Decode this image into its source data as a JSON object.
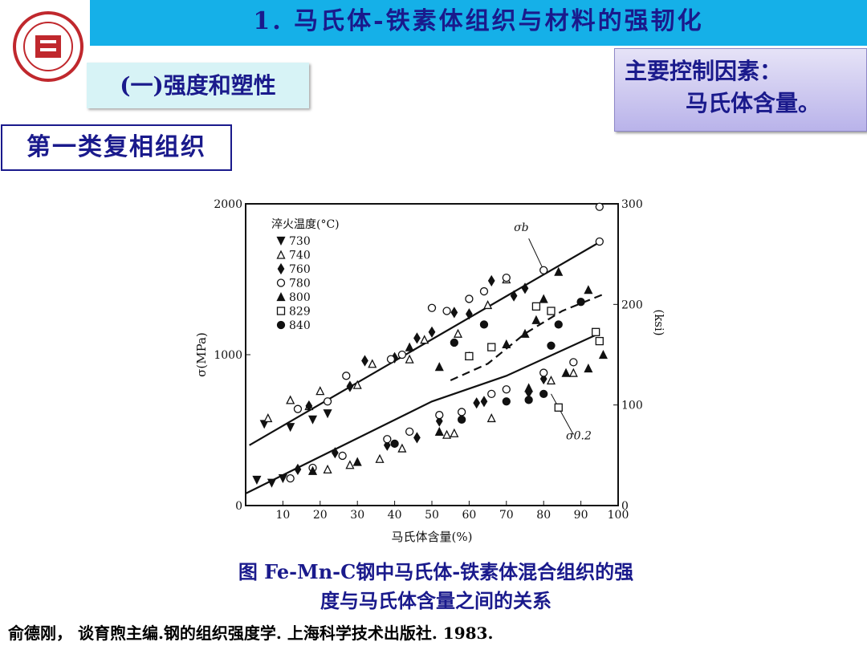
{
  "header": {
    "title": "1. 马氏体-铁素体组织与材料的强韧化"
  },
  "section": "(一)强度和塑性",
  "callout": {
    "line1": "主要控制因素：",
    "line2": "马氏体含量。"
  },
  "subsection": "第一类复相组织",
  "chart_data": {
    "type": "scatter",
    "xlabel": "马氏体含量(%)",
    "ylabel": "σ(MPa)",
    "y2label": "(ksi)",
    "legend_title": "淬火温度(°C)",
    "xlim": [
      0,
      100
    ],
    "xticks": [
      10,
      20,
      30,
      40,
      50,
      60,
      70,
      80,
      90,
      100
    ],
    "ylim": [
      0,
      2000
    ],
    "yticks": [
      0,
      1000,
      2000
    ],
    "y2lim": [
      0,
      300
    ],
    "y2ticks": [
      0,
      100,
      200,
      300
    ],
    "series": [
      {
        "name": "730",
        "marker": "triangle-down",
        "color": "#111111",
        "x": [
          5,
          12,
          18,
          22,
          3,
          7,
          10
        ],
        "values": [
          540,
          520,
          570,
          610,
          170,
          150,
          180
        ]
      },
      {
        "name": "740",
        "marker": "triangle-up-open",
        "color": "#111111",
        "x": [
          6,
          12,
          17,
          20,
          30,
          34,
          44,
          48,
          57,
          65,
          70,
          22,
          28,
          36,
          42,
          54,
          56,
          66,
          82,
          88
        ],
        "values": [
          580,
          700,
          660,
          760,
          800,
          940,
          970,
          1100,
          1140,
          1330,
          1500,
          240,
          270,
          310,
          380,
          470,
          480,
          580,
          830,
          880
        ]
      },
      {
        "name": "760",
        "marker": "diamond",
        "color": "#111111",
        "x": [
          17,
          28,
          32,
          40,
          46,
          50,
          56,
          60,
          66,
          72,
          75,
          14,
          24,
          38,
          46,
          52,
          62,
          64,
          76,
          80
        ],
        "values": [
          660,
          790,
          960,
          980,
          1110,
          1150,
          1280,
          1270,
          1490,
          1390,
          1440,
          240,
          350,
          400,
          450,
          560,
          680,
          690,
          750,
          840
        ]
      },
      {
        "name": "780",
        "marker": "circle-open",
        "color": "#111111",
        "x": [
          14,
          22,
          27,
          39,
          42,
          50,
          54,
          60,
          64,
          70,
          80,
          95,
          95,
          12,
          18,
          26,
          38,
          44,
          52,
          58,
          66,
          70,
          80,
          88
        ],
        "values": [
          640,
          690,
          860,
          970,
          1000,
          1310,
          1290,
          1370,
          1420,
          1510,
          1560,
          1750,
          1980,
          180,
          250,
          330,
          440,
          490,
          600,
          620,
          740,
          770,
          880,
          950
        ]
      },
      {
        "name": "800",
        "marker": "triangle-up",
        "color": "#111111",
        "x": [
          44,
          52,
          60,
          70,
          75,
          78,
          80,
          84,
          92,
          96,
          18,
          30,
          52,
          76,
          86,
          92
        ],
        "values": [
          1050,
          920,
          990,
          1070,
          1140,
          1230,
          1370,
          1550,
          1430,
          1000,
          230,
          290,
          490,
          780,
          880,
          910
        ]
      },
      {
        "name": "829",
        "marker": "square-open",
        "color": "#111111",
        "x": [
          60,
          66,
          78,
          82,
          94,
          95,
          84
        ],
        "values": [
          990,
          1050,
          1320,
          1290,
          1150,
          1090,
          650
        ]
      },
      {
        "name": "840",
        "marker": "circle",
        "color": "#111111",
        "x": [
          56,
          64,
          82,
          84,
          90,
          40,
          58,
          70,
          76,
          80
        ],
        "values": [
          1080,
          1200,
          1060,
          1200,
          1350,
          410,
          570,
          690,
          700,
          740
        ]
      }
    ],
    "fit_lines": [
      {
        "label": "σb",
        "dash": false,
        "x": [
          1,
          96
        ],
        "values": [
          400,
          1760
        ]
      },
      {
        "label": "σ0.2",
        "dash": false,
        "x": [
          0,
          50,
          70,
          94
        ],
        "values": [
          80,
          690,
          860,
          1130
        ]
      },
      {
        "dash": true,
        "x": [
          55,
          65,
          75,
          85,
          96
        ],
        "values": [
          830,
          940,
          1140,
          1290,
          1400
        ]
      }
    ]
  },
  "caption": {
    "line1": "图 Fe-Mn-C钢中马氏体-铁素体混合组织的强",
    "line2": "度与马氏体含量之间的关系"
  },
  "reference": "俞德刚， 谈育煦主编.钢的组织强度学. 上海科学技术出版社. 1983."
}
